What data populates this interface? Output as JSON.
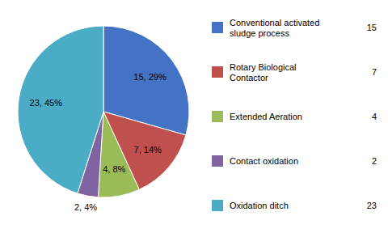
{
  "chart_data": {
    "type": "pie",
    "categories": [
      "Conventional activated\nsludge process",
      "Rotary Biological\nContactor",
      "Extended Aeration",
      "Contact oxidation",
      "Oxidation ditch"
    ],
    "values": [
      15,
      7,
      4,
      2,
      23
    ],
    "value_labels": [
      "15, 29%",
      "7, 14%",
      "4, 8%",
      "2, 4%",
      "23, 45%"
    ],
    "colors": [
      "#4472C4",
      "#C0504D",
      "#9BBB59",
      "#8064A2",
      "#4BACC6"
    ],
    "data_labels": true,
    "legend": "right"
  }
}
